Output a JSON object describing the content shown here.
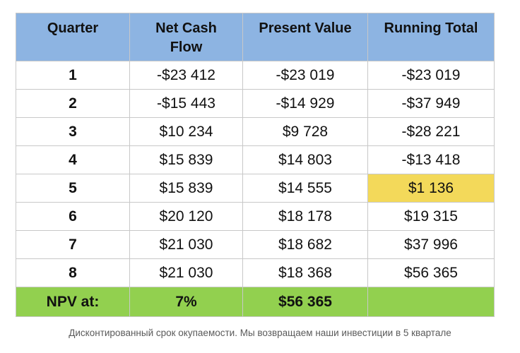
{
  "table": {
    "headers": {
      "quarter": "Quarter",
      "net_cash_flow_line1": "Net Cash",
      "net_cash_flow_line2": "Flow",
      "present_value": "Present Value",
      "running_total": "Running Total"
    },
    "rows": [
      {
        "quarter": "1",
        "net_cash_flow": "-$23 412",
        "present_value": "-$23 019",
        "running_total": "-$23 019"
      },
      {
        "quarter": "2",
        "net_cash_flow": "-$15 443",
        "present_value": "-$14 929",
        "running_total": "-$37 949"
      },
      {
        "quarter": "3",
        "net_cash_flow": "$10 234",
        "present_value": "$9 728",
        "running_total": "-$28 221"
      },
      {
        "quarter": "4",
        "net_cash_flow": "$15 839",
        "present_value": "$14 803",
        "running_total": "-$13 418"
      },
      {
        "quarter": "5",
        "net_cash_flow": "$15 839",
        "present_value": "$14 555",
        "running_total": "$1 136"
      },
      {
        "quarter": "6",
        "net_cash_flow": "$20 120",
        "present_value": "$18 178",
        "running_total": "$19 315"
      },
      {
        "quarter": "7",
        "net_cash_flow": "$21 030",
        "present_value": "$18 682",
        "running_total": "$37 996"
      },
      {
        "quarter": "8",
        "net_cash_flow": "$21 030",
        "present_value": "$18 368",
        "running_total": "$56 365"
      }
    ],
    "footer": {
      "label": "NPV at:",
      "rate": "7%",
      "npv": "$56 365",
      "empty": ""
    },
    "highlight_row": 4,
    "colors": {
      "header_bg": "#8db4e2",
      "highlight_bg": "#f3d95a",
      "footer_bg": "#92d04f"
    }
  },
  "caption": "Дисконтированный срок окупаемости. Мы возвращаем наши инвестиции в 5 квартале"
}
